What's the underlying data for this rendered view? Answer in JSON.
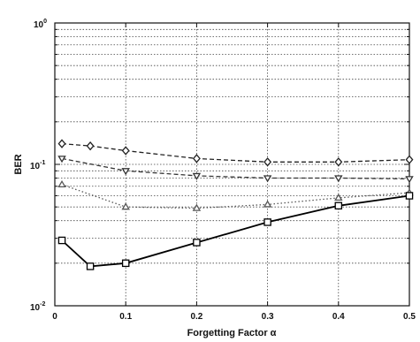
{
  "chart_data": {
    "type": "line",
    "xlabel": "Forgetting Factor α",
    "ylabel": "BER",
    "yscale": "log",
    "xlim": [
      0,
      0.5
    ],
    "ylim": [
      0.01,
      1
    ],
    "x_ticks": [
      "0",
      "0.1",
      "0.2",
      "0.3",
      "0.4",
      "0.5"
    ],
    "y_ticks": [
      {
        "base": "10",
        "exp": "0",
        "value": 1
      },
      {
        "base": "10",
        "exp": "-1",
        "value": 0.1
      },
      {
        "base": "10",
        "exp": "-2",
        "value": 0.01
      }
    ],
    "grid": true,
    "series": [
      {
        "marker": "diamond",
        "style": "dashed",
        "color": "#222222",
        "x": [
          0.01,
          0.05,
          0.1,
          0.2,
          0.3,
          0.4,
          0.5
        ],
        "y": [
          0.14,
          0.135,
          0.125,
          0.11,
          0.104,
          0.104,
          0.108
        ]
      },
      {
        "marker": "triangle-down",
        "style": "dashed",
        "color": "#333333",
        "x": [
          0.01,
          0.1,
          0.2,
          0.3,
          0.4,
          0.5
        ],
        "y": [
          0.11,
          0.09,
          0.083,
          0.08,
          0.08,
          0.079
        ]
      },
      {
        "marker": "triangle-up",
        "style": "dotted",
        "color": "#555555",
        "x": [
          0.01,
          0.1,
          0.2,
          0.3,
          0.4,
          0.5
        ],
        "y": [
          0.072,
          0.05,
          0.049,
          0.052,
          0.058,
          0.063
        ]
      },
      {
        "marker": "square",
        "style": "solid",
        "color": "#000000",
        "x": [
          0.01,
          0.05,
          0.1,
          0.2,
          0.3,
          0.4,
          0.5
        ],
        "y": [
          0.029,
          0.019,
          0.02,
          0.028,
          0.039,
          0.051,
          0.06
        ]
      }
    ]
  }
}
